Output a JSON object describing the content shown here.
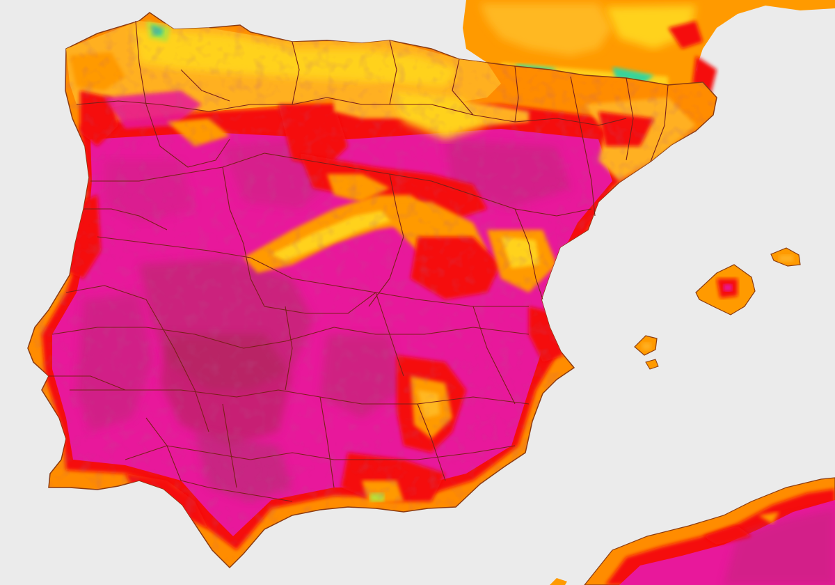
{
  "map": {
    "colors": {
      "sea": "#ebebeb",
      "extreme": "#e8189b",
      "extreme_dark": "#b82a6a",
      "very_hot": "#f50f0f",
      "hot": "#ff7a00",
      "warm": "#ff9a00",
      "mild": "#ffd21e",
      "cool": "#b8e03a",
      "cold": "#39d49a",
      "border": "#7a2018",
      "coast": "#8a3a10"
    },
    "land_areas": [
      "iberian-peninsula",
      "southern-france",
      "mallorca",
      "menorca",
      "ibiza",
      "formentera",
      "north-africa-coast"
    ],
    "labels": []
  }
}
